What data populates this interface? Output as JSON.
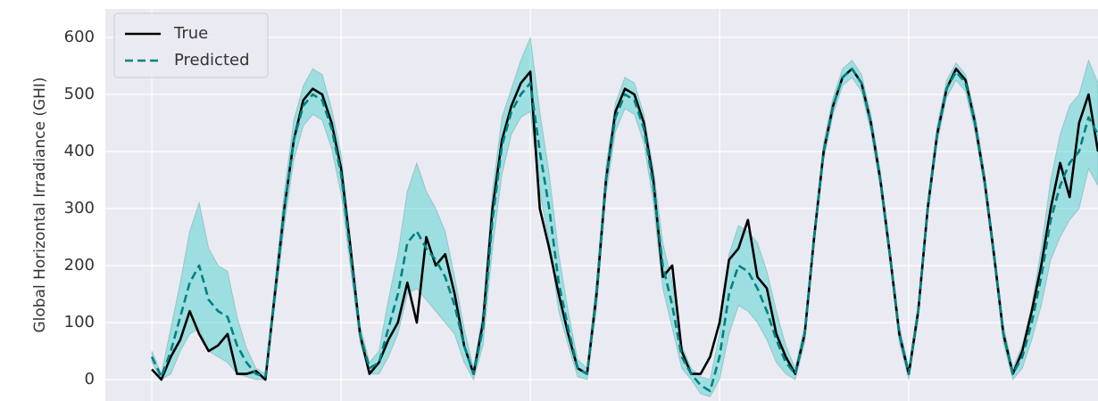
{
  "chart_data": {
    "type": "line",
    "y_label": "Global Horizontal Irradiance (GHI)",
    "x": [
      0,
      2.5,
      5,
      7.5,
      10,
      12.5,
      15,
      17.5,
      20,
      22.5,
      25,
      27.5,
      30,
      32.5,
      35,
      37.5,
      40,
      42.5,
      45,
      47.5,
      50,
      52.5,
      55,
      57.5,
      60,
      62.5,
      65,
      67.5,
      70,
      72.5,
      75,
      77.5,
      80,
      82.5,
      85,
      87.5,
      90,
      92.5,
      95,
      97.5,
      100,
      102.5,
      105,
      107.5,
      110,
      112.5,
      115,
      117.5,
      120,
      122.5,
      125,
      127.5,
      130,
      132.5,
      135,
      137.5,
      140,
      142.5,
      145,
      147.5,
      150,
      152.5,
      155,
      157.5,
      160,
      162.5,
      165,
      167.5,
      170,
      172.5,
      175,
      177.5,
      180,
      182.5,
      185,
      187.5,
      190,
      192.5,
      195,
      197.5,
      200,
      202.5,
      205,
      207.5,
      210,
      212.5,
      215,
      217.5,
      220,
      222.5,
      225,
      227.5,
      230,
      232.5,
      235,
      237.5,
      240,
      242.5,
      245,
      247.5,
      250
    ],
    "series": [
      {
        "name": "True",
        "color": "#000000",
        "dashed": false,
        "values": [
          18,
          0,
          40,
          70,
          120,
          80,
          50,
          60,
          80,
          10,
          10,
          15,
          0,
          150,
          300,
          420,
          490,
          510,
          500,
          450,
          370,
          230,
          80,
          10,
          30,
          70,
          100,
          170,
          100,
          250,
          200,
          220,
          150,
          60,
          10,
          100,
          300,
          420,
          480,
          520,
          540,
          300,
          230,
          150,
          80,
          20,
          10,
          150,
          350,
          470,
          510,
          500,
          450,
          350,
          180,
          200,
          50,
          10,
          10,
          40,
          100,
          210,
          230,
          280,
          180,
          160,
          80,
          40,
          10,
          80,
          250,
          400,
          480,
          530,
          545,
          520,
          450,
          350,
          220,
          80,
          10,
          120,
          300,
          430,
          510,
          545,
          525,
          450,
          350,
          220,
          80,
          10,
          50,
          120,
          200,
          300,
          380,
          320,
          450,
          500,
          400
        ]
      },
      {
        "name": "Predicted",
        "color": "#008080",
        "dashed": true,
        "values": [
          40,
          5,
          50,
          110,
          170,
          200,
          140,
          120,
          110,
          60,
          30,
          10,
          5,
          150,
          300,
          420,
          480,
          500,
          490,
          440,
          360,
          220,
          80,
          20,
          30,
          90,
          150,
          240,
          260,
          230,
          210,
          180,
          130,
          60,
          10,
          90,
          280,
          410,
          470,
          500,
          520,
          400,
          300,
          170,
          90,
          20,
          10,
          150,
          350,
          460,
          500,
          490,
          440,
          340,
          200,
          130,
          40,
          10,
          -10,
          -20,
          40,
          150,
          200,
          190,
          160,
          120,
          70,
          30,
          10,
          80,
          250,
          400,
          480,
          530,
          545,
          520,
          450,
          350,
          220,
          80,
          10,
          120,
          300,
          430,
          510,
          540,
          520,
          450,
          350,
          220,
          80,
          10,
          40,
          100,
          180,
          280,
          340,
          380,
          400,
          460,
          430
        ]
      }
    ],
    "band": {
      "color": "#40d0cc",
      "lower": [
        30,
        0,
        10,
        50,
        80,
        90,
        50,
        40,
        30,
        10,
        5,
        0,
        0,
        130,
        270,
        385,
        445,
        465,
        455,
        405,
        325,
        195,
        65,
        10,
        10,
        40,
        80,
        150,
        160,
        140,
        120,
        100,
        80,
        30,
        0,
        60,
        230,
        360,
        430,
        460,
        470,
        330,
        240,
        120,
        60,
        5,
        0,
        125,
        325,
        435,
        475,
        465,
        415,
        310,
        160,
        90,
        20,
        0,
        -25,
        -30,
        0,
        80,
        130,
        120,
        100,
        70,
        30,
        10,
        0,
        65,
        235,
        385,
        465,
        515,
        530,
        505,
        435,
        335,
        205,
        65,
        0,
        105,
        285,
        415,
        495,
        525,
        505,
        435,
        335,
        205,
        65,
        0,
        20,
        70,
        130,
        210,
        250,
        280,
        300,
        370,
        340
      ],
      "upper": [
        50,
        10,
        90,
        170,
        260,
        310,
        230,
        200,
        190,
        110,
        55,
        20,
        10,
        170,
        330,
        455,
        515,
        545,
        535,
        475,
        395,
        245,
        95,
        30,
        50,
        140,
        220,
        330,
        380,
        330,
        300,
        260,
        180,
        90,
        20,
        120,
        330,
        460,
        510,
        560,
        600,
        470,
        360,
        220,
        120,
        35,
        20,
        175,
        375,
        485,
        530,
        520,
        465,
        370,
        240,
        170,
        60,
        20,
        5,
        0,
        80,
        220,
        270,
        260,
        240,
        190,
        120,
        60,
        20,
        95,
        265,
        415,
        495,
        545,
        560,
        535,
        465,
        365,
        235,
        95,
        20,
        135,
        315,
        445,
        525,
        555,
        535,
        465,
        365,
        235,
        95,
        20,
        60,
        130,
        230,
        350,
        430,
        480,
        500,
        560,
        520
      ]
    },
    "xlim": [
      -12.3,
      250
    ],
    "xticks": [
      0,
      50,
      100,
      150,
      200
    ],
    "ylim": [
      -37.5,
      650
    ],
    "yticks": [
      0,
      100,
      200,
      300,
      400,
      500,
      600
    ],
    "grid": true,
    "legend": "upper left"
  }
}
